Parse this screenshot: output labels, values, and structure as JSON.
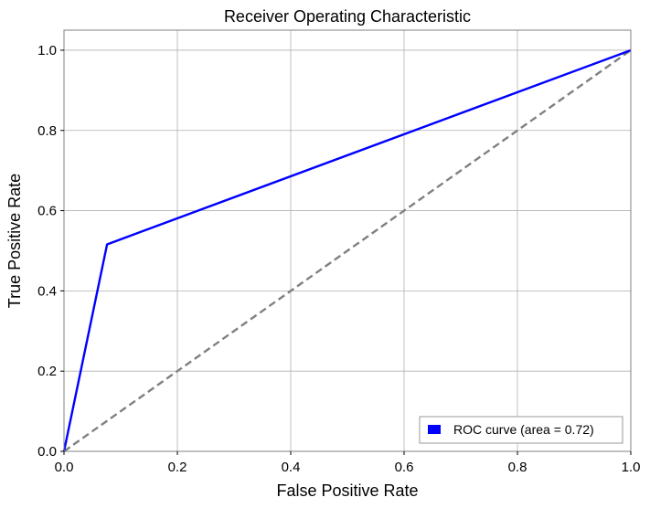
{
  "chart_data": {
    "type": "line",
    "title": "Receiver Operating Characteristic",
    "xlabel": "False Positive Rate",
    "ylabel": "True Positive Rate",
    "xlim": [
      0.0,
      1.0
    ],
    "ylim": [
      0.0,
      1.05
    ],
    "xticks": [
      "0.0",
      "0.2",
      "0.4",
      "0.6",
      "0.8",
      "1.0"
    ],
    "yticks": [
      "0.0",
      "0.2",
      "0.4",
      "0.6",
      "0.8",
      "1.0"
    ],
    "grid": true,
    "legend_position": "lower-right",
    "series": [
      {
        "name": "ROC curve (area = 0.72)",
        "color": "#0000ff",
        "line_style": "solid",
        "x": [
          0.0,
          0.076,
          1.0
        ],
        "y": [
          0.0,
          0.516,
          1.0
        ]
      },
      {
        "color": "#808080",
        "line_style": "dashed",
        "x": [
          0.0,
          1.0
        ],
        "y": [
          0.0,
          1.0
        ]
      }
    ]
  }
}
